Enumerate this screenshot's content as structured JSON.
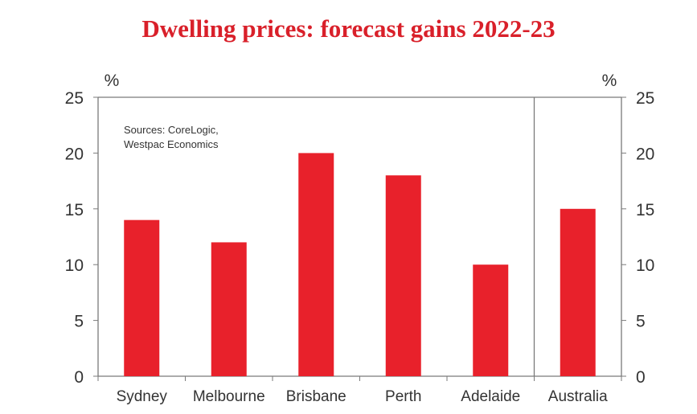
{
  "chart_data": {
    "type": "bar",
    "title": "Dwelling prices: forecast gains 2022-23",
    "categories": [
      "Sydney",
      "Melbourne",
      "Brisbane",
      "Perth",
      "Adelaide",
      "Australia"
    ],
    "values": [
      14,
      12,
      20,
      18,
      10,
      15
    ],
    "ylabel_left": "%",
    "ylabel_right": "%",
    "ylim": [
      0,
      25
    ],
    "yticks": [
      0,
      5,
      10,
      15,
      20,
      25
    ],
    "annotation": [
      "Sources:  CoreLogic,",
      "Westpac Economics"
    ],
    "grid": false,
    "bar_color": "#e8212b",
    "title_color": "#d9202a"
  }
}
